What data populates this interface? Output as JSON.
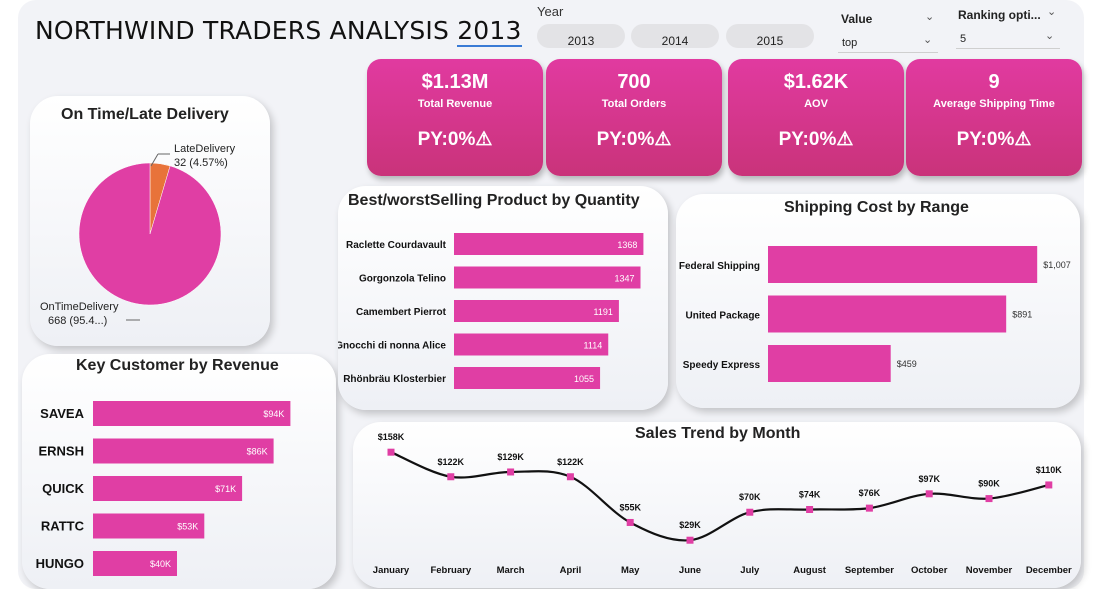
{
  "header": {
    "title_main": "NORTHWIND TRADERS ANALYSIS ",
    "title_year": "2013"
  },
  "year_slicer": {
    "label": "Year",
    "options": [
      "2013",
      "2014",
      "2015"
    ]
  },
  "value_slicer": {
    "label": "Value",
    "selected": "top"
  },
  "ranking_slicer": {
    "label": "Ranking opti...",
    "selected": "5"
  },
  "kpis": [
    {
      "value": "$1.13M",
      "label": "Total Revenue",
      "py": "PY:0%"
    },
    {
      "value": "700",
      "label": "Total Orders",
      "py": "PY:0%"
    },
    {
      "value": "$1.62K",
      "label": "AOV",
      "py": "PY:0%"
    },
    {
      "value": "9",
      "label": "Average Shipping Time",
      "py": "PY:0%"
    }
  ],
  "delivery_card": {
    "title": "On Time/Late Delivery",
    "late_label": "LateDelivery",
    "late_value": "32 (4.57%)",
    "ontime_label": "OnTimeDelivery",
    "ontime_value": "668 (95.4...)"
  },
  "customer_card": {
    "title": "Key Customer by Revenue"
  },
  "product_card": {
    "title": "Best/worstSelling Product by Quantity"
  },
  "shipping_card": {
    "title": "Shipping Cost by Range"
  },
  "trend_card": {
    "title": "Sales Trend by Month"
  },
  "colors": {
    "accent": "#e03ea4",
    "late": "#e8733a",
    "line": "#111111"
  },
  "chart_data": [
    {
      "type": "pie",
      "title": "On Time/Late Delivery",
      "slices": [
        {
          "name": "OnTimeDelivery",
          "value": 668,
          "color": "#e03ea4"
        },
        {
          "name": "LateDelivery",
          "value": 32,
          "color": "#e8733a"
        }
      ]
    },
    {
      "type": "bar",
      "orientation": "horizontal",
      "title": "Key Customer by Revenue",
      "categories": [
        "SAVEA",
        "ERNSH",
        "QUICK",
        "RATTC",
        "HUNGO"
      ],
      "values": [
        94,
        86,
        71,
        53,
        40
      ],
      "labels": [
        "$94K",
        "$86K",
        "$71K",
        "$53K",
        "$40K"
      ],
      "xlim": [
        0,
        100
      ]
    },
    {
      "type": "bar",
      "orientation": "horizontal",
      "title": "Best/worstSelling Product by Quantity",
      "categories": [
        "Raclette Courdavault",
        "Gorgonzola Telino",
        "Camembert Pierrot",
        "Gnocchi di nonna Alice",
        "Rhönbräu Klosterbier"
      ],
      "values": [
        1368,
        1347,
        1191,
        1114,
        1055
      ],
      "labels": [
        "1368",
        "1347",
        "1191",
        "1114",
        "1055"
      ],
      "xlim": [
        0,
        1430
      ]
    },
    {
      "type": "bar",
      "orientation": "horizontal",
      "title": "Shipping Cost by Range",
      "categories": [
        "Federal Shipping",
        "United Package",
        "Speedy Express"
      ],
      "values": [
        1007,
        891,
        459
      ],
      "labels": [
        "$1,007",
        "$891",
        "$459"
      ],
      "xlim": [
        0,
        1010
      ]
    },
    {
      "type": "line",
      "title": "Sales Trend by Month",
      "categories": [
        "January",
        "February",
        "March",
        "April",
        "May",
        "June",
        "July",
        "August",
        "September",
        "October",
        "November",
        "December"
      ],
      "values": [
        158,
        122,
        129,
        122,
        55,
        29,
        70,
        74,
        76,
        97,
        90,
        110
      ],
      "labels": [
        "$158K",
        "$122K",
        "$129K",
        "$122K",
        "$55K",
        "$29K",
        "$70K",
        "$74K",
        "$76K",
        "$97K",
        "$90K",
        "$110K"
      ],
      "ylim": [
        0,
        170
      ]
    }
  ]
}
